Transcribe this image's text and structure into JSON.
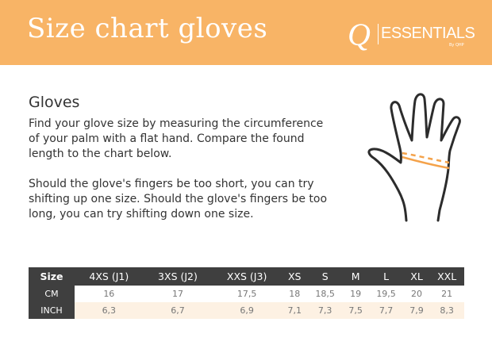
{
  "header": {
    "title": "Size chart gloves",
    "logo": {
      "mark": "Q",
      "name": "ESSENTIALS",
      "by": "By QHP"
    },
    "color": "#F8B466"
  },
  "section": {
    "heading": "Gloves",
    "paragraph1": "Find your glove size by measuring the circumference of your palm with a flat hand. Compare the found length to the chart below.",
    "paragraph2": "Should the glove's fingers be too short, you can try shifting up one size. Should the glove's fingers be too long, you can try shifting down one size."
  },
  "illustration": {
    "icon": "hand-measure-icon",
    "accent": "#F4A24A"
  },
  "table": {
    "headers": [
      "Size",
      "4XS (J1)",
      "3XS (J2)",
      "XXS (J3)",
      "XS",
      "S",
      "M",
      "L",
      "XL",
      "XXL"
    ],
    "rows": [
      {
        "label": "CM",
        "values": [
          "16",
          "17",
          "17,5",
          "18",
          "18,5",
          "19",
          "19,5",
          "20",
          "21"
        ]
      },
      {
        "label": "INCH",
        "values": [
          "6,3",
          "6,7",
          "6,9",
          "7,1",
          "7,3",
          "7,5",
          "7,7",
          "7,9",
          "8,3"
        ]
      }
    ]
  }
}
